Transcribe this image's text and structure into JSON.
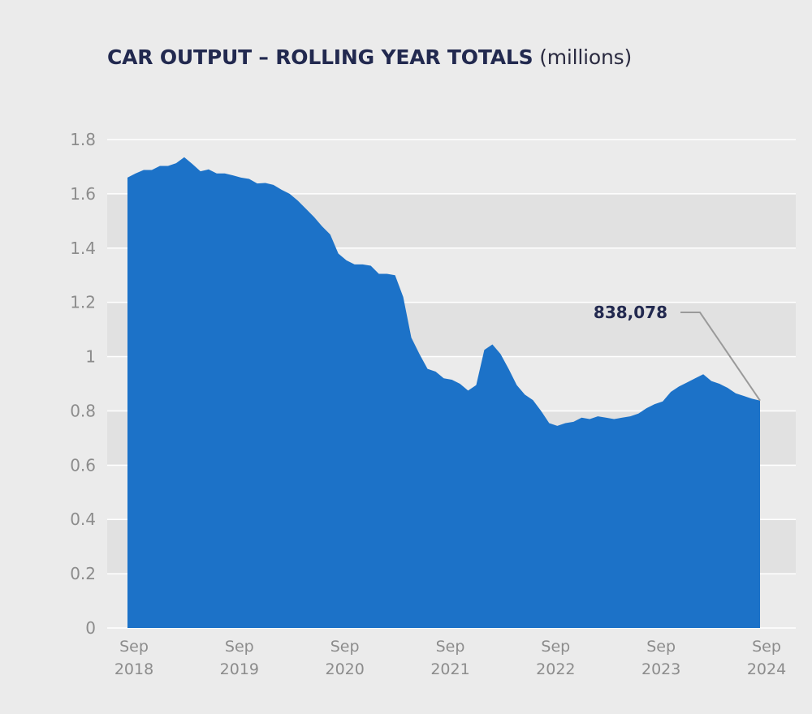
{
  "title": {
    "main": "CAR OUTPUT – ROLLING YEAR TOTALS",
    "unit": "(millions)"
  },
  "colors": {
    "background": "#ebebeb",
    "band": "#e1e1e1",
    "gridline": "#ffffff",
    "area": "#1c72c8",
    "title": "#22294f",
    "tick": "#8c8c8c",
    "callout_line": "#9a9a9a"
  },
  "callout": {
    "label": "838,078",
    "x": 78,
    "y": 0.838
  },
  "chart_data": {
    "type": "area",
    "title": "CAR OUTPUT – ROLLING YEAR TOTALS (millions)",
    "xlabel": "",
    "ylabel": "",
    "ylim": [
      0,
      1.8
    ],
    "xlim": [
      0,
      78
    ],
    "yticks": [
      {
        "value": 0,
        "label": "0"
      },
      {
        "value": 0.2,
        "label": "0.2"
      },
      {
        "value": 0.4,
        "label": "0.4"
      },
      {
        "value": 0.6,
        "label": "0.6"
      },
      {
        "value": 0.8,
        "label": "0.8"
      },
      {
        "value": 1.0,
        "label": "1"
      },
      {
        "value": 1.2,
        "label": "1.2"
      },
      {
        "value": 1.4,
        "label": "1.4"
      },
      {
        "value": 1.6,
        "label": "1.6"
      },
      {
        "value": 1.8,
        "label": "1.8"
      }
    ],
    "xticks": [
      {
        "value": 0,
        "month": "Sep",
        "year": "2018"
      },
      {
        "value": 13,
        "month": "Sep",
        "year": "2019"
      },
      {
        "value": 26,
        "month": "Sep",
        "year": "2020"
      },
      {
        "value": 39,
        "month": "Sep",
        "year": "2021"
      },
      {
        "value": 52,
        "month": "Sep",
        "year": "2022"
      },
      {
        "value": 65,
        "month": "Sep",
        "year": "2023"
      },
      {
        "value": 78,
        "month": "Sep",
        "year": "2024"
      }
    ],
    "alternating_bands": true,
    "series": [
      {
        "values": [
          [
            0,
            1.66
          ],
          [
            1,
            1.675
          ],
          [
            2,
            1.688
          ],
          [
            3,
            1.688
          ],
          [
            4,
            1.703
          ],
          [
            5,
            1.703
          ],
          [
            6,
            1.713
          ],
          [
            7,
            1.735
          ],
          [
            8,
            1.71
          ],
          [
            9,
            1.683
          ],
          [
            10,
            1.69
          ],
          [
            11,
            1.675
          ],
          [
            12,
            1.675
          ],
          [
            13,
            1.668
          ],
          [
            14,
            1.66
          ],
          [
            15,
            1.655
          ],
          [
            16,
            1.638
          ],
          [
            17,
            1.64
          ],
          [
            18,
            1.633
          ],
          [
            19,
            1.615
          ],
          [
            20,
            1.6
          ],
          [
            21,
            1.575
          ],
          [
            22,
            1.545
          ],
          [
            23,
            1.515
          ],
          [
            24,
            1.48
          ],
          [
            25,
            1.45
          ],
          [
            26,
            1.38
          ],
          [
            27,
            1.355
          ],
          [
            28,
            1.34
          ],
          [
            29,
            1.34
          ],
          [
            30,
            1.335
          ],
          [
            31,
            1.305
          ],
          [
            32,
            1.305
          ],
          [
            33,
            1.3
          ],
          [
            34,
            1.22
          ],
          [
            35,
            1.07
          ],
          [
            36,
            1.01
          ],
          [
            37,
            0.955
          ],
          [
            38,
            0.945
          ],
          [
            39,
            0.92
          ],
          [
            40,
            0.915
          ],
          [
            41,
            0.9
          ],
          [
            42,
            0.875
          ],
          [
            43,
            0.895
          ],
          [
            44,
            1.025
          ],
          [
            45,
            1.045
          ],
          [
            46,
            1.01
          ],
          [
            47,
            0.955
          ],
          [
            48,
            0.895
          ],
          [
            49,
            0.86
          ],
          [
            50,
            0.84
          ],
          [
            51,
            0.8
          ],
          [
            52,
            0.755
          ],
          [
            53,
            0.745
          ],
          [
            54,
            0.755
          ],
          [
            55,
            0.76
          ],
          [
            56,
            0.775
          ],
          [
            57,
            0.77
          ],
          [
            58,
            0.78
          ],
          [
            59,
            0.775
          ],
          [
            60,
            0.77
          ],
          [
            61,
            0.775
          ],
          [
            62,
            0.78
          ],
          [
            63,
            0.79
          ],
          [
            64,
            0.81
          ],
          [
            65,
            0.825
          ],
          [
            66,
            0.835
          ],
          [
            67,
            0.87
          ],
          [
            68,
            0.89
          ],
          [
            69,
            0.905
          ],
          [
            70,
            0.92
          ],
          [
            71,
            0.935
          ],
          [
            72,
            0.91
          ],
          [
            73,
            0.9
          ],
          [
            74,
            0.885
          ],
          [
            75,
            0.865
          ],
          [
            76,
            0.855
          ],
          [
            77,
            0.845
          ],
          [
            78,
            0.838
          ]
        ]
      }
    ]
  }
}
